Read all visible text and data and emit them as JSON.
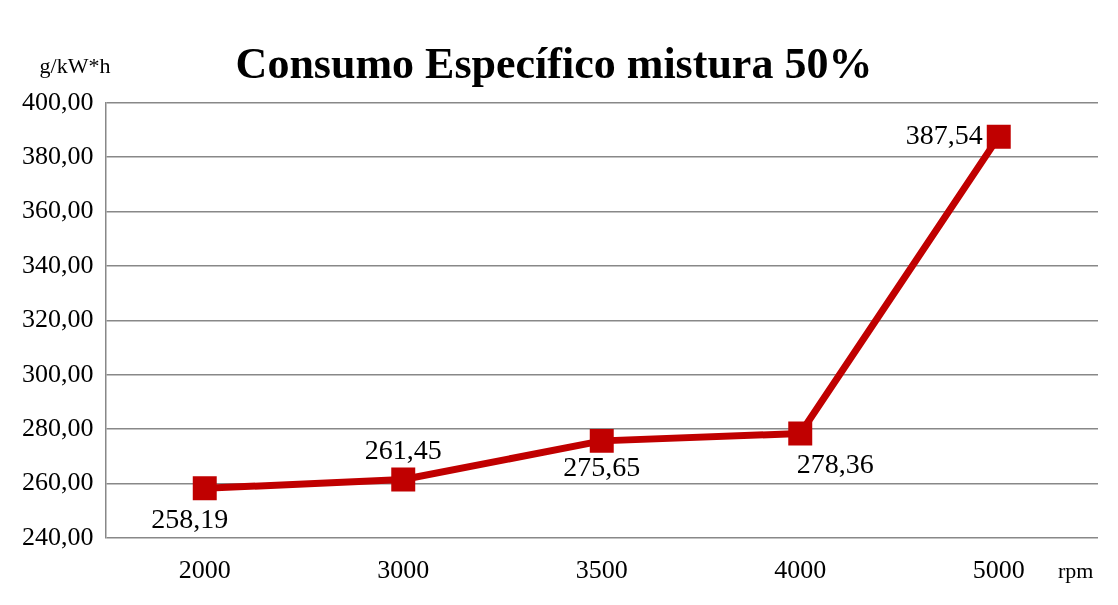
{
  "chart_data": {
    "type": "line",
    "title": "Consumo Específico mistura 50%",
    "ylabel": "g/kW*h",
    "xlabel": "rpm",
    "categories": [
      "2000",
      "3000",
      "3500",
      "4000",
      "5000"
    ],
    "series": [
      {
        "color": "#c00000",
        "values": [
          258.19,
          261.45,
          275.65,
          278.36,
          387.54
        ],
        "value_labels": [
          "258,19",
          "261,45",
          "275,65",
          "278,36",
          "387,54"
        ]
      }
    ],
    "ylim": [
      240,
      400
    ],
    "yticks": [
      {
        "value": 240,
        "label": "240,00"
      },
      {
        "value": 260,
        "label": "260,00"
      },
      {
        "value": 280,
        "label": "280,00"
      },
      {
        "value": 300,
        "label": "300,00"
      },
      {
        "value": 320,
        "label": "320,00"
      },
      {
        "value": 340,
        "label": "340,00"
      },
      {
        "value": 360,
        "label": "360,00"
      },
      {
        "value": 380,
        "label": "380,00"
      },
      {
        "value": 400,
        "label": "400,00"
      }
    ],
    "grid": "y",
    "legend": false,
    "marker": "square",
    "line_style": "solid"
  }
}
